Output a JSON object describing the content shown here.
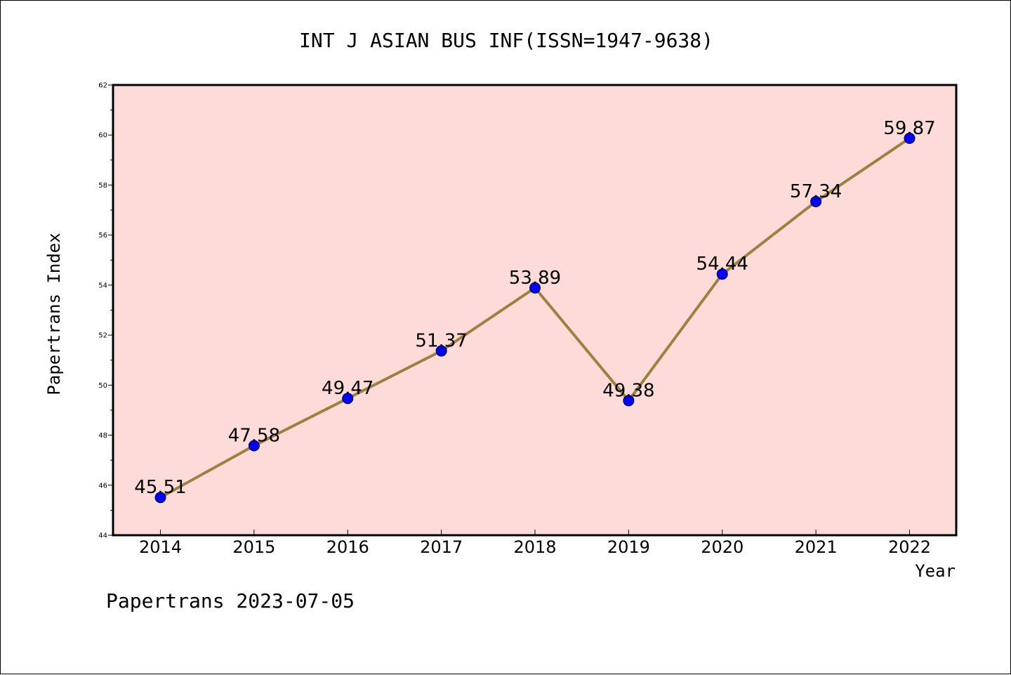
{
  "footer": {
    "text": "Papertrans 2023-07-05"
  },
  "colors": {
    "plot_background": "#fddbd8",
    "line": "#9b8240",
    "marker": "#0000ff",
    "axis": "#000000"
  },
  "chart_data": {
    "type": "line",
    "title": "INT J ASIAN BUS INF(ISSN=1947-9638)",
    "xlabel": "Year",
    "ylabel": "Papertrans Index",
    "x": [
      "2014",
      "2015",
      "2016",
      "2017",
      "2018",
      "2019",
      "2020",
      "2021",
      "2022"
    ],
    "y": [
      45.51,
      47.58,
      49.47,
      51.37,
      53.89,
      49.38,
      54.44,
      57.34,
      59.87
    ],
    "data_labels": [
      "45.51",
      "47.58",
      "49.47",
      "51.37",
      "53.89",
      "49.38",
      "54.44",
      "57.34",
      "59.87"
    ],
    "ylim": [
      44,
      62
    ],
    "yticks": [
      44,
      46,
      48,
      50,
      52,
      54,
      56,
      58,
      60,
      62
    ],
    "ytick_labels": [
      "44",
      "46",
      "48",
      "50",
      "52",
      "54",
      "56",
      "58",
      "60",
      "62"
    ],
    "grid": false,
    "legend": "none"
  }
}
